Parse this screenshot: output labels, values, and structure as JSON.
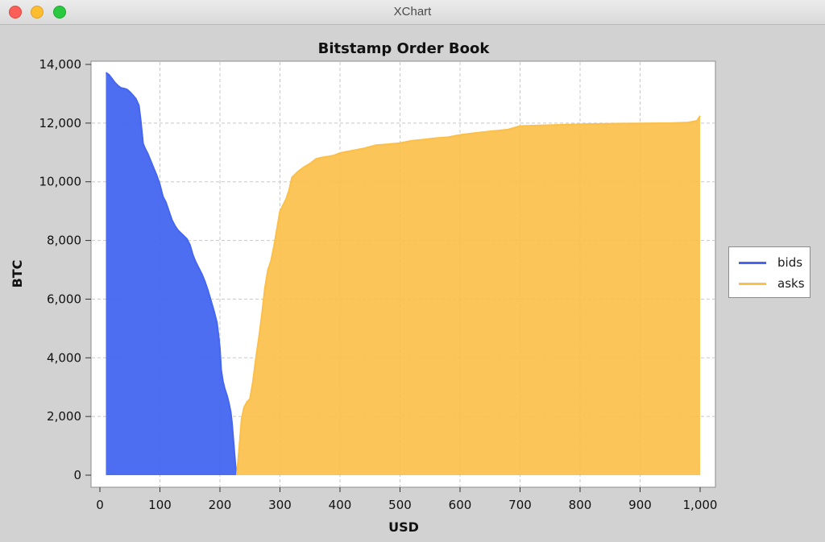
{
  "window": {
    "title": "XChart"
  },
  "legend": {
    "bids_label": "bids",
    "asks_label": "asks"
  },
  "colors": {
    "bids": "#4466f0",
    "asks": "#fcbf47",
    "grid": "#c8c8c8",
    "plot_background": "#ffffff",
    "window_background": "#d2d2d2"
  },
  "chart_data": {
    "type": "area",
    "title": "Bitstamp Order Book",
    "xlabel": "USD",
    "ylabel": "BTC",
    "xlim": [
      0,
      1000
    ],
    "ylim": [
      0,
      14000
    ],
    "grid": true,
    "legend_position": "right",
    "x_ticks": [
      "0",
      "100",
      "200",
      "300",
      "400",
      "500",
      "600",
      "700",
      "800",
      "900",
      "1,000"
    ],
    "y_ticks": [
      "0",
      "2,000",
      "4,000",
      "6,000",
      "8,000",
      "10,000",
      "12,000",
      "14,000"
    ],
    "series": [
      {
        "name": "bids",
        "points": [
          [
            10,
            13720
          ],
          [
            15,
            13650
          ],
          [
            20,
            13520
          ],
          [
            25,
            13380
          ],
          [
            30,
            13280
          ],
          [
            35,
            13200
          ],
          [
            40,
            13180
          ],
          [
            45,
            13150
          ],
          [
            50,
            13060
          ],
          [
            55,
            12950
          ],
          [
            60,
            12830
          ],
          [
            65,
            12600
          ],
          [
            68,
            12100
          ],
          [
            72,
            11300
          ],
          [
            75,
            11150
          ],
          [
            80,
            10950
          ],
          [
            85,
            10700
          ],
          [
            90,
            10450
          ],
          [
            95,
            10200
          ],
          [
            100,
            9900
          ],
          [
            105,
            9500
          ],
          [
            110,
            9300
          ],
          [
            115,
            9000
          ],
          [
            120,
            8700
          ],
          [
            125,
            8500
          ],
          [
            130,
            8350
          ],
          [
            135,
            8250
          ],
          [
            140,
            8150
          ],
          [
            145,
            8050
          ],
          [
            150,
            7850
          ],
          [
            155,
            7500
          ],
          [
            160,
            7250
          ],
          [
            165,
            7050
          ],
          [
            170,
            6850
          ],
          [
            175,
            6600
          ],
          [
            180,
            6300
          ],
          [
            185,
            5950
          ],
          [
            190,
            5600
          ],
          [
            195,
            5200
          ],
          [
            198,
            4700
          ],
          [
            200,
            4300
          ],
          [
            202,
            3600
          ],
          [
            205,
            3200
          ],
          [
            208,
            2950
          ],
          [
            212,
            2700
          ],
          [
            215,
            2450
          ],
          [
            218,
            2150
          ],
          [
            220,
            1800
          ],
          [
            222,
            1300
          ],
          [
            224,
            800
          ],
          [
            226,
            300
          ],
          [
            228,
            0
          ]
        ]
      },
      {
        "name": "asks",
        "points": [
          [
            228,
            0
          ],
          [
            232,
            900
          ],
          [
            236,
            1900
          ],
          [
            240,
            2300
          ],
          [
            245,
            2500
          ],
          [
            250,
            2600
          ],
          [
            255,
            3200
          ],
          [
            260,
            4000
          ],
          [
            265,
            4700
          ],
          [
            270,
            5500
          ],
          [
            275,
            6400
          ],
          [
            280,
            7000
          ],
          [
            285,
            7300
          ],
          [
            290,
            7800
          ],
          [
            295,
            8400
          ],
          [
            300,
            9000
          ],
          [
            305,
            9200
          ],
          [
            310,
            9400
          ],
          [
            315,
            9700
          ],
          [
            320,
            10150
          ],
          [
            330,
            10350
          ],
          [
            340,
            10500
          ],
          [
            350,
            10620
          ],
          [
            360,
            10780
          ],
          [
            370,
            10830
          ],
          [
            380,
            10860
          ],
          [
            390,
            10900
          ],
          [
            400,
            10980
          ],
          [
            420,
            11060
          ],
          [
            440,
            11140
          ],
          [
            460,
            11250
          ],
          [
            480,
            11280
          ],
          [
            500,
            11320
          ],
          [
            520,
            11400
          ],
          [
            540,
            11440
          ],
          [
            560,
            11490
          ],
          [
            580,
            11520
          ],
          [
            600,
            11600
          ],
          [
            620,
            11650
          ],
          [
            650,
            11720
          ],
          [
            680,
            11780
          ],
          [
            700,
            11900
          ],
          [
            750,
            11930
          ],
          [
            800,
            11960
          ],
          [
            850,
            11980
          ],
          [
            900,
            11990
          ],
          [
            950,
            12000
          ],
          [
            980,
            12020
          ],
          [
            995,
            12080
          ],
          [
            1000,
            12250
          ]
        ]
      }
    ]
  }
}
